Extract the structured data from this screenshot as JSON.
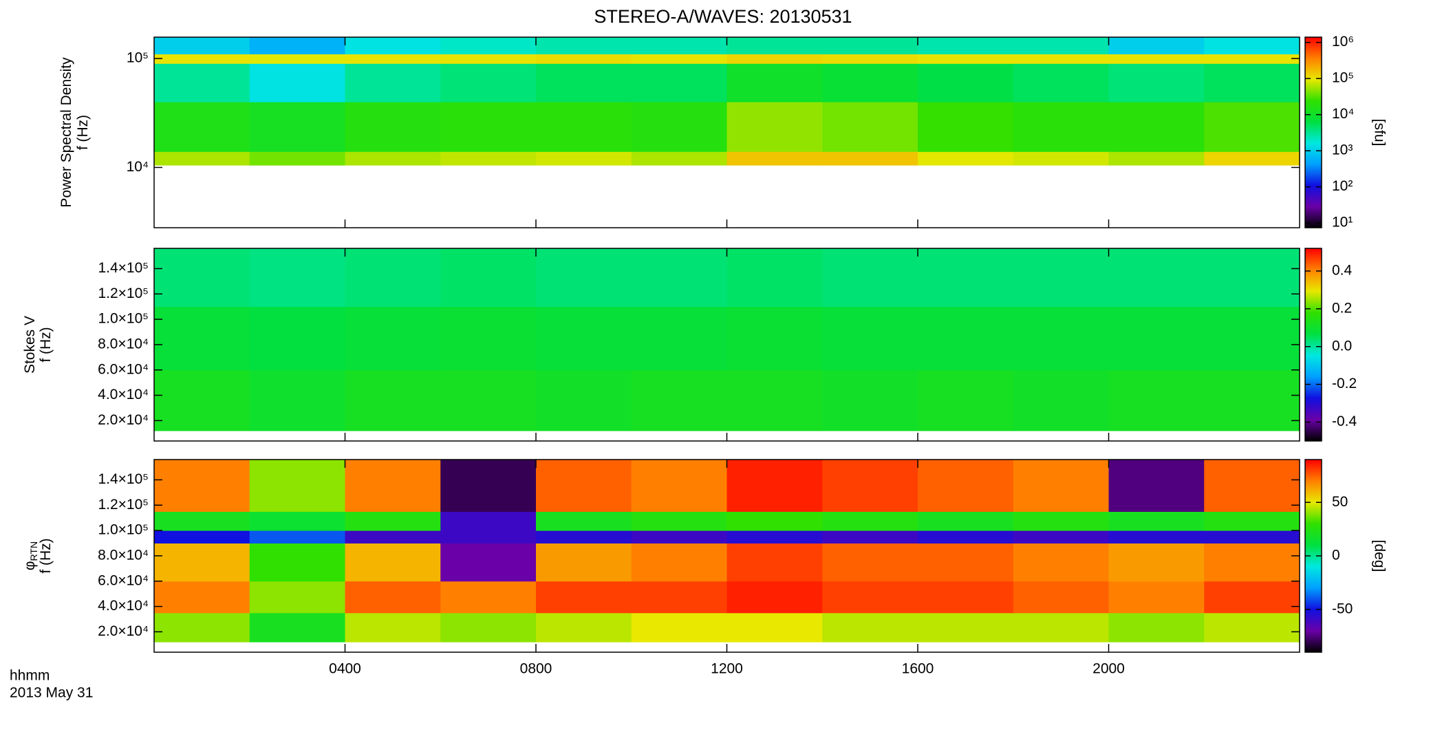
{
  "figure": {
    "title": "STEREO-A/WAVES: 20130531",
    "time_label": "hhmm",
    "date_label": "2013 May 31",
    "xlim": [
      0,
      24
    ],
    "xticks": [
      {
        "value": 4,
        "label": "0400"
      },
      {
        "value": 8,
        "label": "0800"
      },
      {
        "value": 12,
        "label": "1200"
      },
      {
        "value": 16,
        "label": "1600"
      },
      {
        "value": 20,
        "label": "2000"
      }
    ],
    "colorscale": [
      "#000000",
      "#6a00a8",
      "#1010e0",
      "#00a0ff",
      "#00e8e0",
      "#00e040",
      "#30e000",
      "#e8e800",
      "#ff8000",
      "#ff0000"
    ]
  },
  "chart_data": [
    {
      "type": "heatmap",
      "ylabel": [
        "Power Spectral Density",
        "f (Hz)"
      ],
      "ylog": true,
      "ylim": [
        2800,
        157000
      ],
      "yticks": [
        {
          "value": 10000,
          "label": "10⁴"
        },
        {
          "value": 100000,
          "label": "10⁵"
        }
      ],
      "x_edges": [
        0,
        2,
        4,
        6,
        8,
        10,
        12,
        14,
        16,
        18,
        20,
        22,
        24
      ],
      "y_edges": [
        10500,
        14000,
        40000,
        90000,
        110000,
        157000
      ],
      "z": [
        [
          60000,
          40000,
          60000,
          70000,
          80000,
          60000,
          150000,
          150000,
          90000,
          80000,
          60000,
          120000
        ],
        [
          15000,
          12000,
          18000,
          20000,
          20000,
          18000,
          50000,
          40000,
          25000,
          20000,
          20000,
          30000
        ],
        [
          3000,
          1500,
          3000,
          4000,
          5000,
          5000,
          10000,
          8000,
          6000,
          5000,
          4000,
          5000
        ],
        [
          100000,
          90000,
          100000,
          100000,
          110000,
          100000,
          120000,
          110000,
          100000,
          100000,
          100000,
          100000
        ],
        [
          1000,
          600,
          1500,
          2000,
          2500,
          2500,
          3000,
          3000,
          2500,
          2500,
          1000,
          1500
        ]
      ],
      "clog": true,
      "clim": [
        7.4,
        1400000
      ],
      "cticks": [
        {
          "value": 10,
          "label": "10¹"
        },
        {
          "value": 100,
          "label": "10²"
        },
        {
          "value": 1000,
          "label": "10³"
        },
        {
          "value": 10000,
          "label": "10⁴"
        },
        {
          "value": 100000,
          "label": "10⁵"
        },
        {
          "value": 1000000,
          "label": "10⁶"
        }
      ],
      "clabel": "[sfu]"
    },
    {
      "type": "heatmap",
      "ylabel": [
        "Stokes V",
        "f (Hz)"
      ],
      "ylog": false,
      "ylim": [
        3900,
        156000
      ],
      "yticks": [
        {
          "value": 20000,
          "label": "2.0×10⁴"
        },
        {
          "value": 40000,
          "label": "4.0×10⁴"
        },
        {
          "value": 60000,
          "label": "6.0×10⁴"
        },
        {
          "value": 80000,
          "label": "8.0×10⁴"
        },
        {
          "value": 100000,
          "label": "1.0×10⁵"
        },
        {
          "value": 120000,
          "label": "1.2×10⁵"
        },
        {
          "value": 140000,
          "label": "1.4×10⁵"
        }
      ],
      "x_edges": [
        0,
        2,
        4,
        6,
        8,
        10,
        12,
        14,
        16,
        18,
        20,
        22,
        24
      ],
      "y_edges": [
        12000,
        60000,
        110000,
        156000
      ],
      "z": [
        [
          0.12,
          0.1,
          0.12,
          0.12,
          0.11,
          0.12,
          0.12,
          0.11,
          0.12,
          0.11,
          0.12,
          0.12
        ],
        [
          0.08,
          0.07,
          0.08,
          0.09,
          0.08,
          0.08,
          0.09,
          0.08,
          0.08,
          0.08,
          0.08,
          0.08
        ],
        [
          0.03,
          0.02,
          0.03,
          0.04,
          0.03,
          0.03,
          0.04,
          0.03,
          0.03,
          0.03,
          0.03,
          0.03
        ]
      ],
      "clog": false,
      "clim": [
        -0.5,
        0.52
      ],
      "cticks": [
        -0.4,
        -0.2,
        {
          "value": 0,
          "label": "0.0"
        },
        0.2,
        0.4
      ]
    },
    {
      "type": "heatmap",
      "ylabel": [
        "φ",
        "f (Hz)"
      ],
      "ylabel_subscript": "RTN",
      "ylog": false,
      "ylim": [
        3900,
        156000
      ],
      "yticks": [
        {
          "value": 20000,
          "label": "2.0×10⁴"
        },
        {
          "value": 40000,
          "label": "4.0×10⁴"
        },
        {
          "value": 60000,
          "label": "6.0×10⁴"
        },
        {
          "value": 80000,
          "label": "8.0×10⁴"
        },
        {
          "value": 100000,
          "label": "1.0×10⁵"
        },
        {
          "value": 120000,
          "label": "1.2×10⁵"
        },
        {
          "value": 140000,
          "label": "1.4×10⁵"
        }
      ],
      "x_edges": [
        0,
        2,
        4,
        6,
        8,
        10,
        12,
        14,
        16,
        18,
        20,
        22,
        24
      ],
      "y_edges": [
        12000,
        35000,
        60000,
        90000,
        100000,
        115000,
        156000
      ],
      "z": [
        [
          40,
          20,
          45,
          40,
          45,
          50,
          50,
          45,
          45,
          45,
          40,
          45
        ],
        [
          70,
          40,
          75,
          70,
          80,
          80,
          85,
          80,
          80,
          75,
          70,
          80
        ],
        [
          60,
          30,
          60,
          -70,
          65,
          70,
          80,
          75,
          75,
          70,
          65,
          70
        ],
        [
          -50,
          -40,
          -60,
          -60,
          -55,
          -60,
          -55,
          -60,
          -55,
          -60,
          -55,
          -55
        ],
        [
          20,
          15,
          25,
          -60,
          20,
          25,
          30,
          25,
          20,
          25,
          20,
          25
        ],
        [
          70,
          40,
          70,
          -80,
          75,
          70,
          85,
          80,
          75,
          70,
          -75,
          75
        ]
      ],
      "clog": false,
      "clim": [
        -90,
        90
      ],
      "cticks": [
        -50,
        0,
        50
      ],
      "clabel": "[deg]"
    }
  ]
}
